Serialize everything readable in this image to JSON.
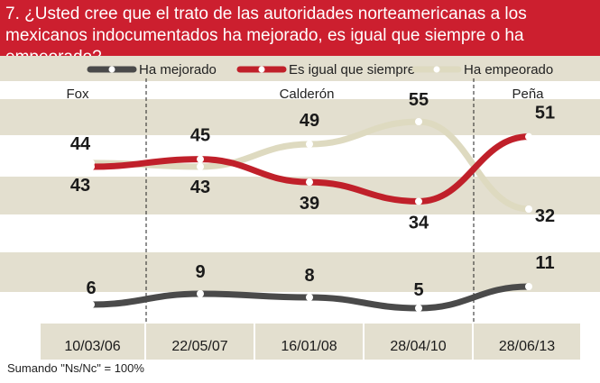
{
  "header": {
    "question": "7. ¿Usted cree que el trato de las autoridades norteamericanas a los mexicanos indocumentados ha mejorado, es igual que siempre o ha empeorado?"
  },
  "footnote": "Sumando \"Ns/Nc\" = 100%",
  "colors": {
    "header_red": "#cc1f2f",
    "band_beige": "#e3dfcf",
    "band_white": "#ffffff",
    "mejorado": "#4a4a4a",
    "igual": "#c0202a",
    "empeorado": "#dedac0",
    "axis_bg": "#e3dfcf"
  },
  "chart_data": {
    "type": "line",
    "categories": [
      "10/03/06",
      "22/05/07",
      "16/01/08",
      "28/04/10",
      "28/06/13"
    ],
    "periods": [
      {
        "label": "Fox"
      },
      {
        "label": "Calderón"
      },
      {
        "label": "Peña"
      }
    ],
    "series": [
      {
        "name": "Ha mejorado",
        "values": [
          6,
          9,
          8,
          5,
          11
        ],
        "color": "#4a4a4a"
      },
      {
        "name": "Es igual que siempre",
        "values": [
          43,
          45,
          39,
          34,
          51
        ],
        "color": "#c0202a"
      },
      {
        "name": "Ha  empeorado",
        "values": [
          44,
          43,
          49,
          55,
          32
        ],
        "color": "#dedac0"
      }
    ],
    "legend_position": "top",
    "grid": "horizontal bands"
  }
}
